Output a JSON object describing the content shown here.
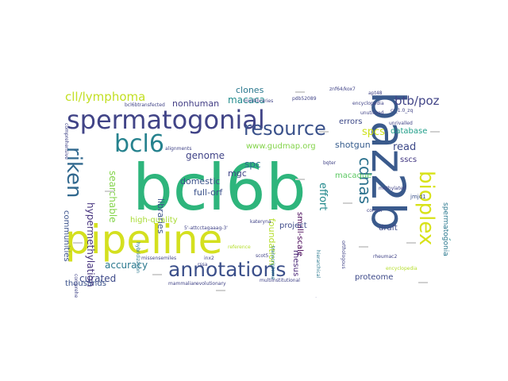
{
  "word_cloud": {
    "words": [
      {
        "text": "pipeline",
        "color": "#d4e01f"
      },
      {
        "text": "bcl6b",
        "color": "#2eb57c"
      },
      {
        "text": "baz2b",
        "color": "#3a5a8c"
      },
      {
        "text": "spermatogonial",
        "color": "#414487"
      },
      {
        "text": "annotations",
        "color": "#3b4f8a"
      },
      {
        "text": "resource",
        "color": "#3b528b"
      },
      {
        "text": "bioplex",
        "color": "#d8e219"
      },
      {
        "text": "riken",
        "color": "#31688e"
      },
      {
        "text": "bcl6",
        "color": "#26828e"
      },
      {
        "text": "cdnas",
        "color": "#2c728e"
      },
      {
        "text": "cll/lymphoma",
        "color": "#c2df23"
      },
      {
        "text": "btb/poz",
        "color": "#414487"
      },
      {
        "text": "spcs",
        "color": "#cde11d"
      },
      {
        "text": "read",
        "color": "#3e4a89"
      },
      {
        "text": "effort",
        "color": "#238a8d"
      },
      {
        "text": "macaca",
        "color": "#228c8d"
      },
      {
        "text": "clones",
        "color": "#2a788e"
      },
      {
        "text": "nonhuman",
        "color": "#433e85"
      },
      {
        "text": "accuracy",
        "color": "#2a788e"
      },
      {
        "text": "curated",
        "color": "#3e4a89"
      },
      {
        "text": "genome",
        "color": "#404387"
      },
      {
        "text": "mgc",
        "color": "#414487"
      },
      {
        "text": "domestic",
        "color": "#3b528b"
      },
      {
        "text": "full-orf",
        "color": "#3b528b"
      },
      {
        "text": "www.gudmap.org",
        "color": "#84d44b"
      },
      {
        "text": "searchable",
        "color": "#84d44b"
      },
      {
        "text": "hypermethylation",
        "color": "#46337e"
      },
      {
        "text": "libraries",
        "color": "#3b528b"
      },
      {
        "text": "thousands",
        "color": "#3b528b"
      },
      {
        "text": "communities",
        "color": "#3b528b"
      },
      {
        "text": "high-quality",
        "color": "#a8db34"
      },
      {
        "text": "spc",
        "color": "#2d708e"
      },
      {
        "text": "foundation",
        "color": "#b5de2b"
      },
      {
        "text": "shotgun",
        "color": "#365c8d"
      },
      {
        "text": "small-scale",
        "color": "#440154"
      },
      {
        "text": "macaque",
        "color": "#5cc863"
      },
      {
        "text": "database",
        "color": "#1f9e89"
      },
      {
        "text": "errors",
        "color": "#3e4a89"
      },
      {
        "text": "sscs",
        "color": "#443983"
      },
      {
        "text": "draft",
        "color": "#3e4a89"
      },
      {
        "text": "rhesus",
        "color": "#482576"
      },
      {
        "text": "project",
        "color": "#3e4a89"
      },
      {
        "text": "proteome",
        "color": "#3e4a89"
      },
      {
        "text": "systematic",
        "color": "#238a8d"
      },
      {
        "text": "spermatogonia",
        "color": "#2a788e"
      },
      {
        "text": "jmjd1",
        "color": "#3b528b"
      },
      {
        "text": "encyclopedia",
        "color": "#404387"
      },
      {
        "text": "methylated",
        "color": "#404387"
      },
      {
        "text": "corum",
        "color": "#404387"
      },
      {
        "text": "rheumac2",
        "color": "#404387"
      },
      {
        "text": "unutilized",
        "color": "#404387"
      },
      {
        "text": "znf64/kox7",
        "color": "#404387"
      },
      {
        "text": "pdb52089",
        "color": "#404387"
      },
      {
        "text": "minilibraries",
        "color": "#404387"
      },
      {
        "text": "bcl6btransfected",
        "color": "#404387"
      },
      {
        "text": "missensemiles",
        "color": "#404387"
      },
      {
        "text": "rssa",
        "color": "#404387"
      },
      {
        "text": "inx2",
        "color": "#404387"
      },
      {
        "text": "accurate",
        "color": "#404387"
      },
      {
        "text": "reference",
        "color": "#b5de2b"
      },
      {
        "text": "kateryna",
        "color": "#404387"
      },
      {
        "text": "scot5",
        "color": "#404387"
      },
      {
        "text": "5'-attcctagaaag-3'",
        "color": "#404387"
      },
      {
        "text": "bqter",
        "color": "#404387"
      },
      {
        "text": "apt48",
        "color": "#404387"
      },
      {
        "text": "hybridization",
        "color": "#2a788e"
      },
      {
        "text": "hierarchical",
        "color": "#2a788e"
      },
      {
        "text": "encyclopedia",
        "color": "#b5de2b"
      },
      {
        "text": "multiinstitutional",
        "color": "#404387"
      },
      {
        "text": "comprehensive",
        "color": "#404387"
      },
      {
        "text": "transcriptome",
        "color": "#2a788e"
      },
      {
        "text": "alignments",
        "color": "#404387"
      },
      {
        "text": "cr_1.0_zq",
        "color": "#404387"
      },
      {
        "text": "unrivalled",
        "color": "#404387"
      },
      {
        "text": "orthologous",
        "color": "#404387"
      },
      {
        "text": "mammalian",
        "color": "#404387"
      },
      {
        "text": "evolutionary",
        "color": "#404387"
      },
      {
        "text": "comprehensive",
        "color": "#404387"
      }
    ]
  }
}
